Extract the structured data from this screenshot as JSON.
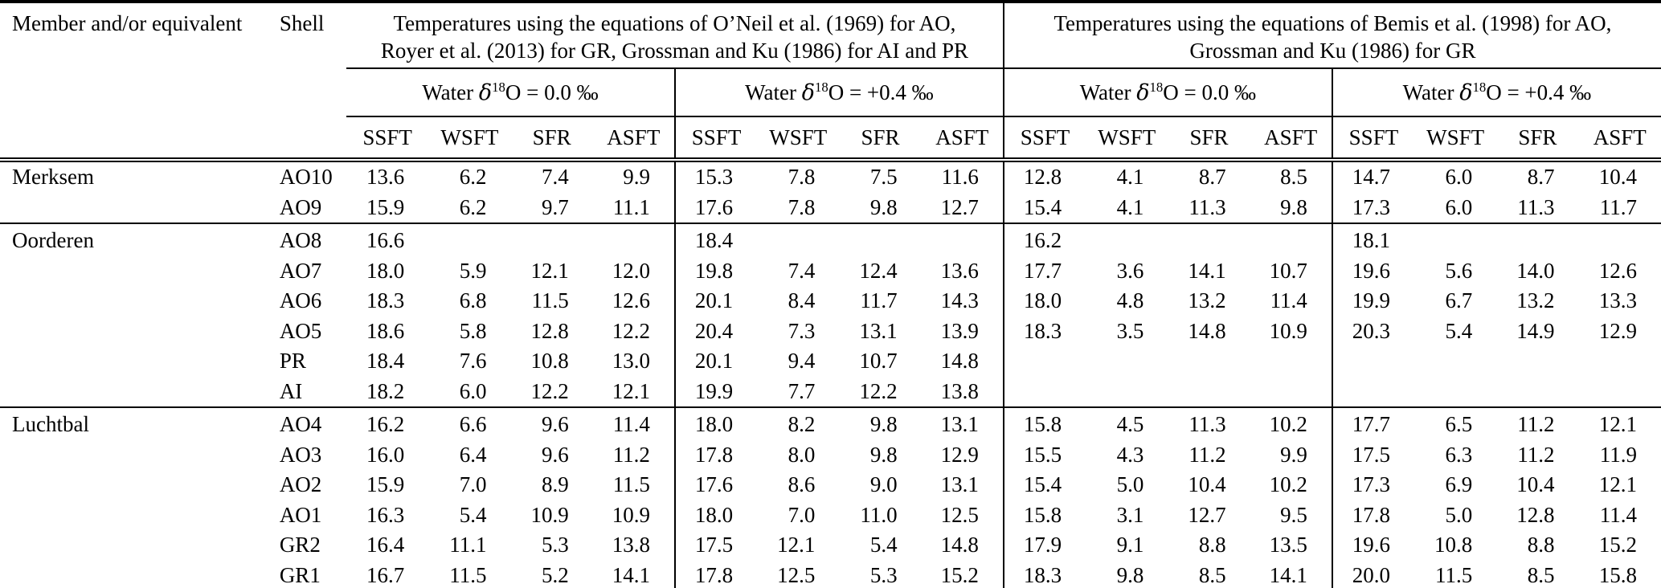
{
  "table": {
    "corner": {
      "member": "Member and/or equivalent",
      "shell": "Shell"
    },
    "groups": [
      {
        "title_lines": [
          "Temperatures using the equations of O’Neil et al. (1969) for AO,",
          "Royer et al. (2013) for GR, Grossman and Ku (1986) for AI and PR"
        ]
      },
      {
        "title_lines": [
          "Temperatures using the equations of Bemis et al. (1998) for AO,",
          "Grossman and Ku (1986) for GR"
        ]
      }
    ],
    "subheaders": [
      {
        "pre": "Water ",
        "delta": "δ",
        "sup": "18",
        "post": "O = 0.0 ‰"
      },
      {
        "pre": "Water ",
        "delta": "δ",
        "sup": "18",
        "post": "O = +0.4 ‰"
      },
      {
        "pre": "Water ",
        "delta": "δ",
        "sup": "18",
        "post": "O = 0.0 ‰"
      },
      {
        "pre": "Water ",
        "delta": "δ",
        "sup": "18",
        "post": "O = +0.4 ‰"
      }
    ],
    "measure_headers": [
      "SSFT",
      "WSFT",
      "SFR",
      "ASFT"
    ],
    "sections": [
      {
        "member": "Merksem",
        "rows": [
          {
            "shell": "AO10",
            "values": [
              "13.6",
              "6.2",
              "7.4",
              "9.9",
              "15.3",
              "7.8",
              "7.5",
              "11.6",
              "12.8",
              "4.1",
              "8.7",
              "8.5",
              "14.7",
              "6.0",
              "8.7",
              "10.4"
            ]
          },
          {
            "shell": "AO9",
            "values": [
              "15.9",
              "6.2",
              "9.7",
              "11.1",
              "17.6",
              "7.8",
              "9.8",
              "12.7",
              "15.4",
              "4.1",
              "11.3",
              "9.8",
              "17.3",
              "6.0",
              "11.3",
              "11.7"
            ]
          }
        ]
      },
      {
        "member": "Oorderen",
        "rows": [
          {
            "shell": "AO8",
            "values": [
              "16.6",
              "",
              "",
              "",
              "18.4",
              "",
              "",
              "",
              "16.2",
              "",
              "",
              "",
              "18.1",
              "",
              "",
              ""
            ]
          },
          {
            "shell": "AO7",
            "values": [
              "18.0",
              "5.9",
              "12.1",
              "12.0",
              "19.8",
              "7.4",
              "12.4",
              "13.6",
              "17.7",
              "3.6",
              "14.1",
              "10.7",
              "19.6",
              "5.6",
              "14.0",
              "12.6"
            ]
          },
          {
            "shell": "AO6",
            "values": [
              "18.3",
              "6.8",
              "11.5",
              "12.6",
              "20.1",
              "8.4",
              "11.7",
              "14.3",
              "18.0",
              "4.8",
              "13.2",
              "11.4",
              "19.9",
              "6.7",
              "13.2",
              "13.3"
            ]
          },
          {
            "shell": "AO5",
            "values": [
              "18.6",
              "5.8",
              "12.8",
              "12.2",
              "20.4",
              "7.3",
              "13.1",
              "13.9",
              "18.3",
              "3.5",
              "14.8",
              "10.9",
              "20.3",
              "5.4",
              "14.9",
              "12.9"
            ]
          },
          {
            "shell": "PR",
            "values": [
              "18.4",
              "7.6",
              "10.8",
              "13.0",
              "20.1",
              "9.4",
              "10.7",
              "14.8",
              "",
              "",
              "",
              "",
              "",
              "",
              "",
              ""
            ]
          },
          {
            "shell": "AI",
            "values": [
              "18.2",
              "6.0",
              "12.2",
              "12.1",
              "19.9",
              "7.7",
              "12.2",
              "13.8",
              "",
              "",
              "",
              "",
              "",
              "",
              "",
              ""
            ]
          }
        ]
      },
      {
        "member": "Luchtbal",
        "rows": [
          {
            "shell": "AO4",
            "values": [
              "16.2",
              "6.6",
              "9.6",
              "11.4",
              "18.0",
              "8.2",
              "9.8",
              "13.1",
              "15.8",
              "4.5",
              "11.3",
              "10.2",
              "17.7",
              "6.5",
              "11.2",
              "12.1"
            ]
          },
          {
            "shell": "AO3",
            "values": [
              "16.0",
              "6.4",
              "9.6",
              "11.2",
              "17.8",
              "8.0",
              "9.8",
              "12.9",
              "15.5",
              "4.3",
              "11.2",
              "9.9",
              "17.5",
              "6.3",
              "11.2",
              "11.9"
            ]
          },
          {
            "shell": "AO2",
            "values": [
              "15.9",
              "7.0",
              "8.9",
              "11.5",
              "17.6",
              "8.6",
              "9.0",
              "13.1",
              "15.4",
              "5.0",
              "10.4",
              "10.2",
              "17.3",
              "6.9",
              "10.4",
              "12.1"
            ]
          },
          {
            "shell": "AO1",
            "values": [
              "16.3",
              "5.4",
              "10.9",
              "10.9",
              "18.0",
              "7.0",
              "11.0",
              "12.5",
              "15.8",
              "3.1",
              "12.7",
              "9.5",
              "17.8",
              "5.0",
              "12.8",
              "11.4"
            ]
          },
          {
            "shell": "GR2",
            "values": [
              "16.4",
              "11.1",
              "5.3",
              "13.8",
              "17.5",
              "12.1",
              "5.4",
              "14.8",
              "17.9",
              "9.1",
              "8.8",
              "13.5",
              "19.6",
              "10.8",
              "8.8",
              "15.2"
            ]
          },
          {
            "shell": "GR1",
            "values": [
              "16.7",
              "11.5",
              "5.2",
              "14.1",
              "17.8",
              "12.5",
              "5.3",
              "15.2",
              "18.3",
              "9.8",
              "8.5",
              "14.1",
              "20.0",
              "11.5",
              "8.5",
              "15.8"
            ]
          }
        ]
      }
    ]
  }
}
